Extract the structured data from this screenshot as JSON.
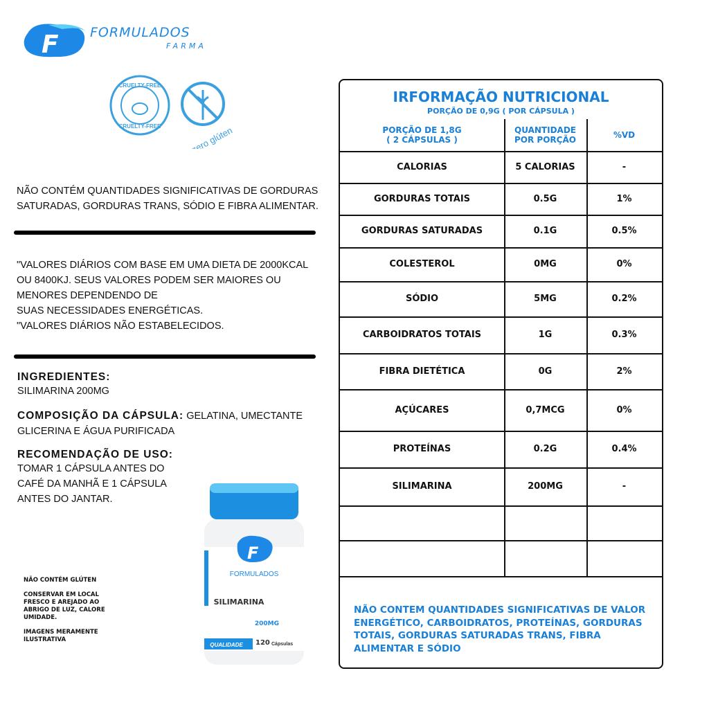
{
  "header": {
    "brand": "FORMULADOS",
    "sub": "FARMA"
  },
  "badges": {
    "cruelty": "CRUELTY-FREE",
    "gluten": "zero glúten"
  },
  "left": {
    "note": [
      "NÃO CONTÉM QUANTIDADES SIGNIFICATIVAS DE GORDURAS",
      "SATURADAS, GORDURAS TRANS, SÓDIO E FIBRA ALIMENTAR."
    ],
    "daily": [
      "\"VALORES DIÁRIOS COM BASE EM UMA DIETA DE 2000KCAL",
      "OU 8400KJ. SEUS VALORES PODEM SER MAIORES OU",
      "MENORES DEPENDENDO DE",
      "SUAS NECESSIDADES ENERGÉTICAS.",
      "\"VALORES DIÁRIOS NÃO ESTABELECIDOS."
    ],
    "ingredients": {
      "title": "INGREDIENTES:",
      "text": "SILIMARINA 200MG"
    },
    "capsule": {
      "title": "COMPOSIÇÃO DA CÁPSULA:",
      "text": [
        "GELATINA, UMECTANTE",
        "GLICERINA E ÁGUA PURIFICADA"
      ]
    },
    "recommendation": {
      "title": "RECOMENDAÇÃO DE USO:",
      "text": [
        "TOMAR 1 CÁPSULA ANTES DO",
        "CAFÉ DA MANHÃ E 1 CÁPSULA",
        "ANTES DO JANTAR."
      ]
    },
    "small": [
      [
        "NÃO CONTÉM GLÚTEN"
      ],
      [
        "CONSERVAR EM LOCAL",
        "FRESCO E AREJADO AO",
        "ABRIGO DE LUZ, CALORE",
        "UMIDADE."
      ],
      [
        "IMAGENS MERAMENTE",
        "ILUSTRATIVA"
      ]
    ]
  },
  "bottle": {
    "brand": "FORMULADOS",
    "product": "SILIMARINA",
    "dose": "200MG",
    "count": "120",
    "unit": "Cápsulas",
    "seal": "QUALIDADE"
  },
  "table": {
    "title": "IRFORMAÇÃO NUTRICIONAL",
    "subtitle": "PORÇÃO DE 0,9G ( POR CÁPSULA )",
    "header": [
      [
        "PORÇÃO DE 1,8G",
        "( 2 CÁPSULAS )"
      ],
      [
        "QUANTIDADE",
        "POR PORÇÃO"
      ],
      [
        "%VD"
      ]
    ],
    "rows": [
      [
        "CALORIAS",
        "5 CALORIAS",
        "-"
      ],
      [
        "GORDURAS TOTAIS",
        "0.5G",
        "1%"
      ],
      [
        "GORDURAS SATURADAS",
        "0.1G",
        "0.5%"
      ],
      [
        "COLESTEROL",
        "0MG",
        "0%"
      ],
      [
        "SÓDIO",
        "5MG",
        "0.2%"
      ],
      [
        "CARBOIDRATOS TOTAIS",
        "1G",
        "0.3%"
      ],
      [
        "FIBRA DIETÉTICA",
        "0G",
        "2%"
      ],
      [
        "AÇÚCARES",
        "0,7MCG",
        "0%"
      ],
      [
        "PROTEÍNAS",
        "0.2G",
        "0.4%"
      ],
      [
        "SILIMARINA",
        "200MG",
        "-"
      ]
    ],
    "footer": [
      "NÃO CONTEM QUANTIDADES SIGNIFICATIVAS DE VALOR",
      "ENERGÉTICO, CARBOIDRATOS, PROTEÍNAS, GORDURAS",
      "TOTAIS, GORDURAS SATURADAS TRANS, FIBRA",
      "ALIMENTAR E SÓDIO"
    ]
  }
}
